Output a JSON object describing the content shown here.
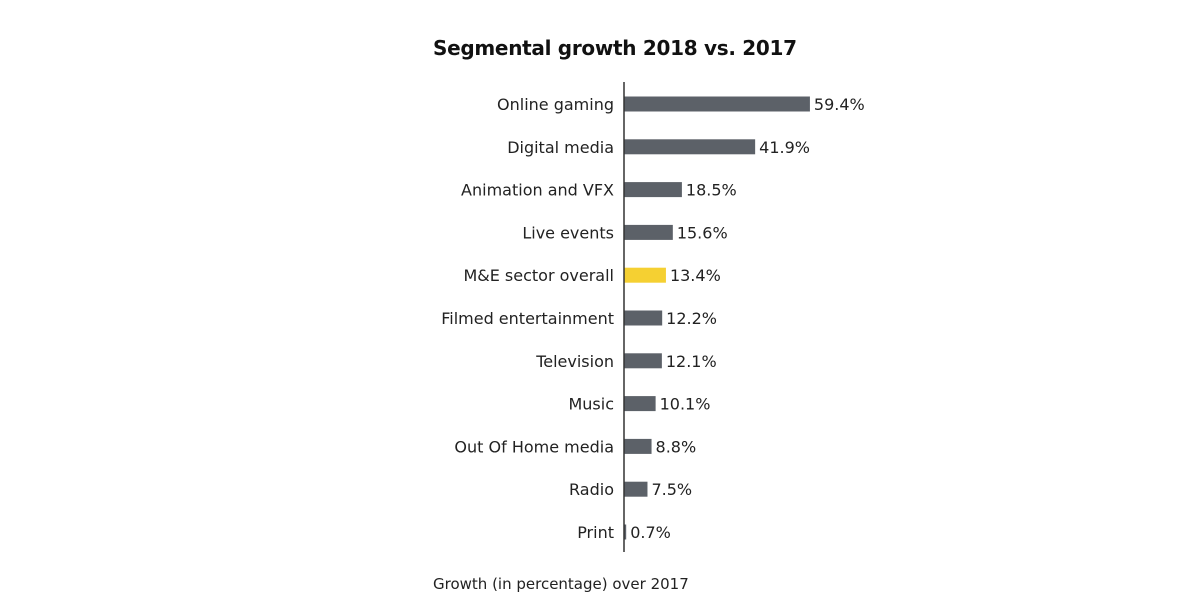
{
  "title": "Segmental growth 2018 vs. 2017",
  "footnote": "Growth (in percentage) over 2017",
  "colors": {
    "bar": "#5c6168",
    "highlight": "#f5d032",
    "axis": "#333333"
  },
  "chart_data": {
    "type": "bar",
    "orientation": "horizontal",
    "title": "Segmental growth 2018 vs. 2017",
    "xlabel": "Growth (in percentage) over 2017",
    "ylabel": "",
    "xlim": [
      0,
      60
    ],
    "grid": false,
    "legend": "none",
    "categories": [
      "Online gaming",
      "Digital media",
      "Animation and VFX",
      "Live events",
      "M&E sector overall",
      "Filmed entertainment",
      "Television",
      "Music",
      "Out Of Home media",
      "Radio",
      "Print"
    ],
    "values": [
      59.4,
      41.9,
      18.5,
      15.6,
      13.4,
      12.2,
      12.1,
      10.1,
      8.8,
      7.5,
      0.7
    ],
    "labels": [
      "59.4%",
      "41.9%",
      "18.5%",
      "15.6%",
      "13.4%",
      "12.2%",
      "12.1%",
      "10.1%",
      "8.8%",
      "7.5%",
      "0.7%"
    ],
    "highlight": [
      "M&E sector overall"
    ]
  }
}
